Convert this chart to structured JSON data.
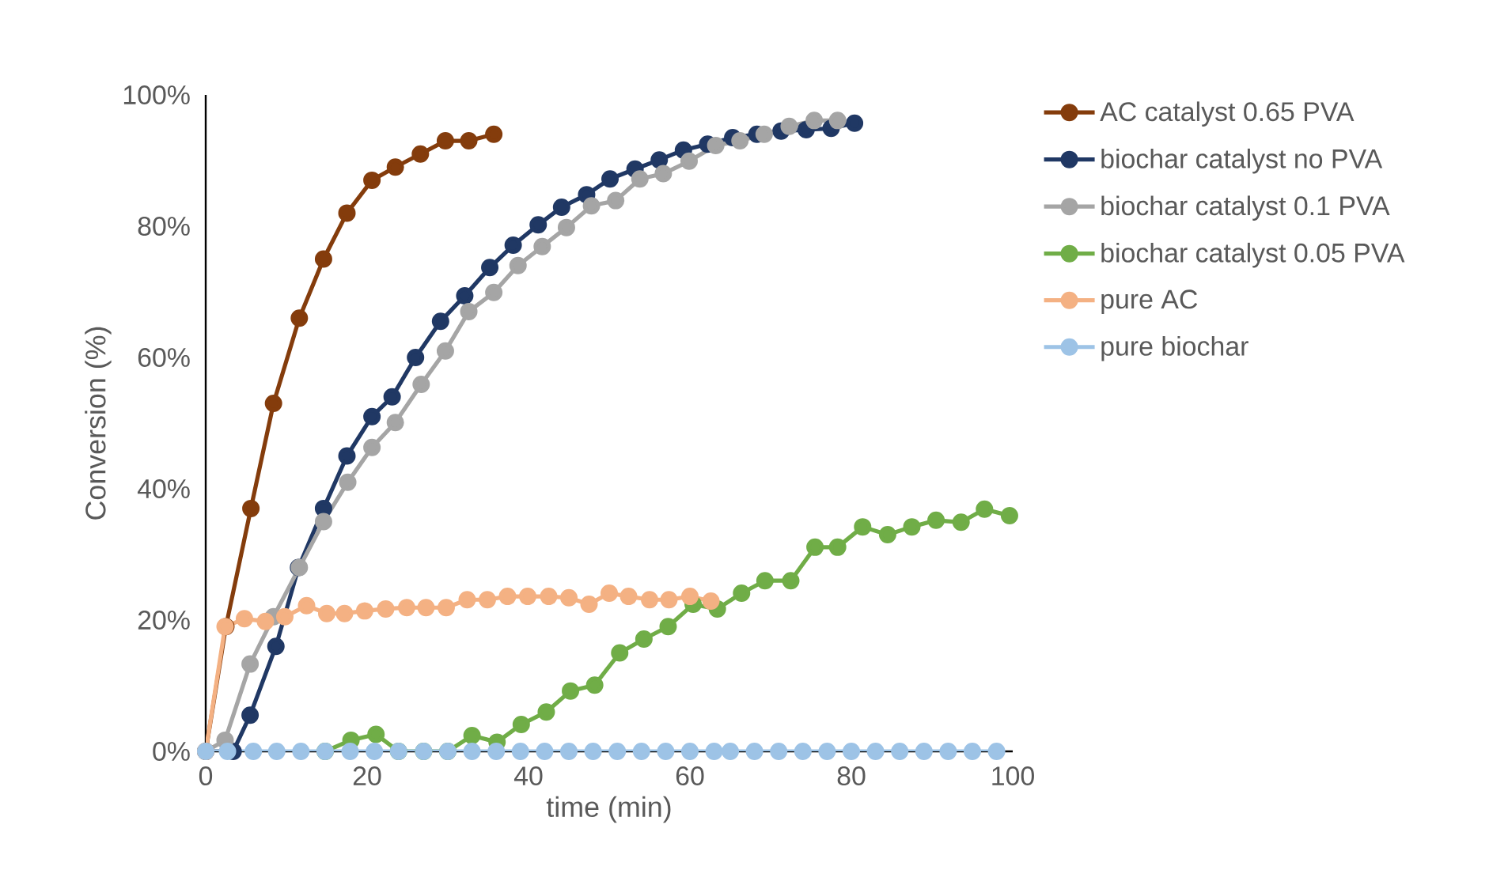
{
  "chart_data": {
    "type": "line",
    "xlabel": "time (min)",
    "ylabel": "Conversion (%)",
    "xlim": [
      0,
      100
    ],
    "xticks": [
      0,
      20,
      40,
      60,
      80,
      100
    ],
    "ylim": [
      0,
      100
    ],
    "yticks": [
      {
        "value": 0,
        "label": "0%"
      },
      {
        "value": 20,
        "label": "20%"
      },
      {
        "value": 40,
        "label": "40%"
      },
      {
        "value": 60,
        "label": "60%"
      },
      {
        "value": 80,
        "label": "80%"
      },
      {
        "value": 100,
        "label": "100%"
      }
    ],
    "grid": false,
    "legend": "right",
    "marker": "circle",
    "line_style": "solid",
    "series": [
      {
        "name": "AC catalyst 0.65 PVA",
        "color": "#843c0c",
        "x": [
          0,
          2.5,
          5.6,
          8.4,
          11.6,
          14.6,
          17.5,
          20.6,
          23.5,
          26.6,
          29.7,
          32.6,
          35.7
        ],
        "values": [
          0,
          19,
          37,
          53,
          66,
          75,
          82,
          87,
          89,
          91,
          93,
          93,
          94
        ]
      },
      {
        "name": "biochar catalyst no PVA",
        "color": "#203864",
        "x": [
          0,
          3.4,
          5.5,
          8.7,
          11.5,
          14.6,
          17.5,
          20.6,
          23.1,
          26,
          29.1,
          32.1,
          35.2,
          38.1,
          41.2,
          44.1,
          47.2,
          50.1,
          53.2,
          56.2,
          59.2,
          62.2,
          65.3,
          68.3,
          71.3,
          74.4,
          77.5,
          80.4
        ],
        "values": [
          0,
          0,
          5.5,
          16,
          28,
          37,
          45,
          51,
          54,
          60,
          65.5,
          69.4,
          73.7,
          77.1,
          80.2,
          82.9,
          84.8,
          87.2,
          88.7,
          90.1,
          91.6,
          92.5,
          93.5,
          94,
          94.5,
          94.7,
          94.9,
          95.7
        ]
      },
      {
        "name": "biochar catalyst 0.1 PVA",
        "color": "#a5a5a5",
        "x": [
          0,
          2.4,
          5.5,
          8.4,
          11.6,
          14.6,
          17.6,
          20.6,
          23.5,
          26.7,
          29.7,
          32.6,
          35.7,
          38.7,
          41.7,
          44.7,
          47.8,
          50.8,
          53.8,
          56.7,
          59.9,
          63.2,
          66.2,
          69.2,
          72.3,
          75.4,
          78.3
        ],
        "values": [
          0,
          1.7,
          13.3,
          20.5,
          28,
          35,
          41,
          46.3,
          50.1,
          55.9,
          61,
          67,
          69.9,
          74,
          76.9,
          79.8,
          83.1,
          83.9,
          87.2,
          88,
          89.9,
          92.3,
          93,
          94,
          95.2,
          96.1,
          96.1
        ]
      },
      {
        "name": "biochar catalyst 0.05 PVA",
        "color": "#70ad47",
        "x": [
          14.8,
          18,
          21.1,
          23.9,
          27,
          30,
          33,
          36.1,
          39.1,
          42.2,
          45.2,
          48.2,
          51.3,
          54.3,
          57.3,
          60.4,
          63.4,
          66.4,
          69.3,
          72.5,
          75.5,
          78.3,
          81.4,
          84.5,
          87.5,
          90.5,
          93.6,
          96.5,
          99.6
        ],
        "values": [
          0,
          1.7,
          2.6,
          0,
          0,
          0,
          2.4,
          1.4,
          4.1,
          6,
          9.2,
          10.1,
          15,
          17.1,
          19,
          22.4,
          21.7,
          24.1,
          26,
          26,
          31.1,
          31.1,
          34.2,
          33,
          34.2,
          35.2,
          34.9,
          36.9,
          35.9
        ]
      },
      {
        "name": "pure AC",
        "color": "#f4b183",
        "x": [
          0,
          2.4,
          4.8,
          7.4,
          9.8,
          12.5,
          15,
          17.2,
          19.7,
          22.3,
          24.9,
          27.3,
          29.8,
          32.4,
          34.9,
          37.4,
          39.9,
          42.5,
          45,
          47.5,
          50,
          52.4,
          55,
          57.4,
          60,
          62.6
        ],
        "values": [
          0,
          19,
          20.2,
          19.8,
          20.5,
          22.2,
          21,
          21,
          21.4,
          21.7,
          21.9,
          21.9,
          21.9,
          23.1,
          23.1,
          23.6,
          23.6,
          23.6,
          23.4,
          22.4,
          24.1,
          23.6,
          23.1,
          23.1,
          23.6,
          22.9
        ]
      },
      {
        "name": "pure biochar",
        "color": "#9dc3e6",
        "x": [
          0,
          2.7,
          5.9,
          8.8,
          11.8,
          14.8,
          17.9,
          20.9,
          23.9,
          27,
          30,
          33,
          36,
          39,
          42,
          45,
          48,
          51,
          54,
          57,
          60,
          63,
          65,
          68,
          71,
          74,
          77,
          80,
          83,
          86,
          89,
          92,
          95,
          98
        ],
        "values": [
          0,
          0,
          0,
          0,
          0,
          0,
          0,
          0,
          0,
          0,
          0,
          0,
          0,
          0,
          0,
          0,
          0,
          0,
          0,
          0,
          0,
          0,
          0,
          0,
          0,
          0,
          0,
          0,
          0,
          0,
          0,
          0,
          0,
          0
        ]
      }
    ]
  }
}
